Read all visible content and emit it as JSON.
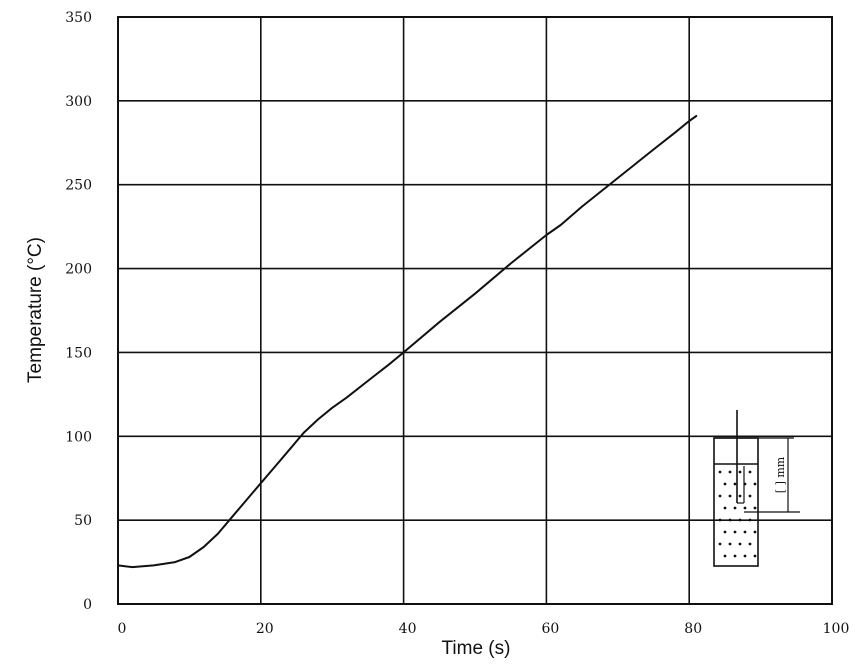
{
  "chart_data": {
    "type": "line",
    "title": "",
    "xlabel": "Time (s)",
    "ylabel": "Temperature (°C)",
    "xlim": [
      0,
      100
    ],
    "ylim": [
      0,
      350
    ],
    "xticks": [
      0,
      20,
      40,
      60,
      80,
      100
    ],
    "yticks": [
      0,
      50,
      100,
      150,
      200,
      250,
      300,
      350
    ],
    "grid": true,
    "legend": "none",
    "series": [
      {
        "x": [
          0,
          2,
          5,
          8,
          10,
          12,
          14,
          16,
          18,
          20,
          22,
          24,
          26,
          28,
          30,
          32,
          35,
          38,
          40,
          45,
          50,
          55,
          60,
          62,
          65,
          70,
          75,
          78,
          80,
          81
        ],
        "y": [
          23,
          22,
          23,
          25,
          28,
          34,
          42,
          52,
          62,
          72,
          82,
          92,
          102,
          110,
          117,
          123,
          133,
          143,
          150,
          168,
          185,
          203,
          220,
          226,
          237,
          254,
          271,
          281,
          288,
          291
        ]
      }
    ],
    "inset": {
      "label": "[ ] mm",
      "icon": "container-cross-section-icon"
    }
  }
}
